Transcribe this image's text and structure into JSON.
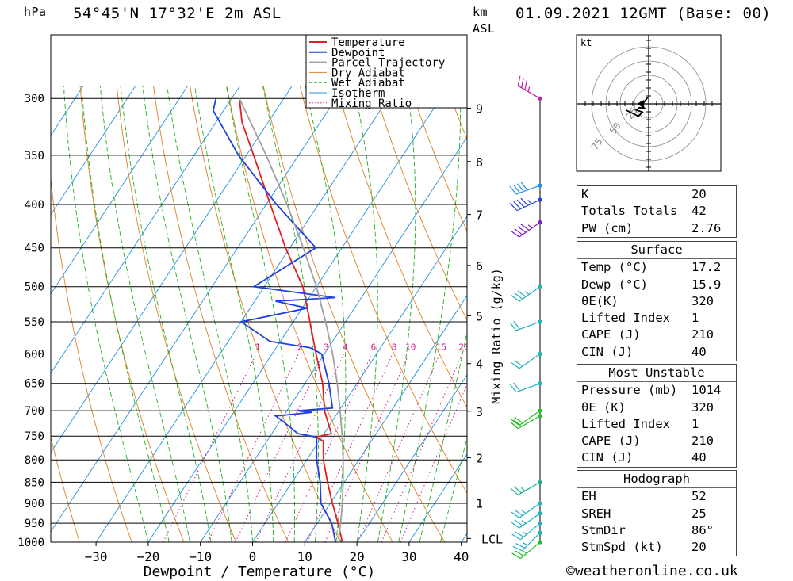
{
  "header": {
    "pressure_unit": "hPa",
    "location": "54°45'N  17°32'E  2m  ASL",
    "height_unit": "km",
    "height_ref": "ASL",
    "datetime": "01.09.2021  12GMT  (Base: 00)"
  },
  "legend": [
    "Temperature",
    "Dewpoint",
    "Parcel Trajectory",
    "Dry Adiabat",
    "Wet Adiabat",
    "Isotherm",
    "Mixing Ratio"
  ],
  "colors": {
    "temperature": "#e02020",
    "dewpoint": "#2040e0",
    "parcel": "#a0a0a0",
    "dry_adiabat": "#e08020",
    "wet_adiabat": "#20b020",
    "isotherm": "#2090e0",
    "mixing_ratio": "#d02090"
  },
  "chart_data": {
    "type": "line",
    "xlabel": "Dewpoint / Temperature (°C)",
    "ylabel_right": "Mixing Ratio (g/kg)",
    "pressure_levels": [
      300,
      350,
      400,
      450,
      500,
      550,
      600,
      650,
      700,
      750,
      800,
      850,
      900,
      950,
      1000
    ],
    "pressure_label_texts": [
      "300",
      "350",
      "400",
      "450",
      "500",
      "550",
      "600",
      "650",
      "700",
      "750",
      "800",
      "850",
      "900",
      "950",
      "1000"
    ],
    "temp_ticks": [
      -30,
      -20,
      -10,
      0,
      10,
      20,
      30,
      40
    ],
    "temp_tick_texts": [
      "−30",
      "−20",
      "−10",
      "0",
      "10",
      "20",
      "30",
      "40"
    ],
    "km_ticks": [
      {
        "label": "9",
        "p": 308
      },
      {
        "label": "8",
        "p": 356
      },
      {
        "label": "7",
        "p": 411
      },
      {
        "label": "6",
        "p": 472
      },
      {
        "label": "5",
        "p": 541
      },
      {
        "label": "4",
        "p": 616
      },
      {
        "label": "3",
        "p": 701
      },
      {
        "label": "2",
        "p": 795
      },
      {
        "label": "1",
        "p": 899
      },
      {
        "label": "LCL",
        "p": 990
      }
    ],
    "mixing_ratio_labels": [
      "1",
      "2",
      "3",
      "4",
      "6",
      "8",
      "10",
      "15",
      "20",
      "25"
    ],
    "mixing_ratio_values": [
      1,
      2,
      3,
      4,
      6,
      8,
      10,
      15,
      20,
      25
    ],
    "series": [
      {
        "name": "Temperature",
        "points": [
          [
            1000,
            17.2
          ],
          [
            950,
            14.0
          ],
          [
            900,
            10.4
          ],
          [
            850,
            6.8
          ],
          [
            800,
            3.2
          ],
          [
            760,
            0.8
          ],
          [
            752,
            -1.2
          ],
          [
            745,
            1.4
          ],
          [
            700,
            -2.8
          ],
          [
            650,
            -6.6
          ],
          [
            600,
            -11.6
          ],
          [
            550,
            -16.8
          ],
          [
            500,
            -22.6
          ],
          [
            450,
            -30.8
          ],
          [
            400,
            -39.2
          ],
          [
            350,
            -48.6
          ],
          [
            320,
            -55.0
          ],
          [
            300,
            -58.5
          ]
        ]
      },
      {
        "name": "Dewpoint",
        "points": [
          [
            1000,
            15.9
          ],
          [
            950,
            12.8
          ],
          [
            900,
            8.2
          ],
          [
            850,
            5.4
          ],
          [
            800,
            1.9
          ],
          [
            752,
            -1.0
          ],
          [
            745,
            -5.0
          ],
          [
            720,
            -9.5
          ],
          [
            710,
            -11.5
          ],
          [
            703,
            -5.0
          ],
          [
            700,
            -8.0
          ],
          [
            695,
            -1.6
          ],
          [
            650,
            -5.4
          ],
          [
            600,
            -10.5
          ],
          [
            590,
            -13.5
          ],
          [
            580,
            -22.0
          ],
          [
            550,
            -30.0
          ],
          [
            530,
            -19.0
          ],
          [
            520,
            -26.0
          ],
          [
            515,
            -15.0
          ],
          [
            500,
            -32.0
          ],
          [
            450,
            -25.0
          ],
          [
            400,
            -38.0
          ],
          [
            350,
            -51.5
          ],
          [
            310,
            -62.0
          ],
          [
            300,
            -63.0
          ]
        ]
      },
      {
        "name": "Parcel Trajectory",
        "points": [
          [
            1000,
            17.2
          ],
          [
            990,
            16.0
          ],
          [
            950,
            14.5
          ],
          [
            900,
            12.3
          ],
          [
            850,
            9.8
          ],
          [
            800,
            7.0
          ],
          [
            750,
            3.8
          ],
          [
            700,
            0.2
          ],
          [
            650,
            -3.8
          ],
          [
            600,
            -8.4
          ],
          [
            550,
            -13.8
          ],
          [
            500,
            -20.0
          ],
          [
            450,
            -27.4
          ],
          [
            400,
            -36.0
          ],
          [
            350,
            -46.2
          ],
          [
            300,
            -58.5
          ]
        ]
      }
    ],
    "hodograph": {
      "unit_label": "kt",
      "ring_labels": [
        "25",
        "50",
        "75"
      ],
      "points": [
        [
          -0.5,
          3.0
        ],
        [
          -2.0,
          1.2
        ],
        [
          -3.5,
          -1.0
        ],
        [
          -2.0,
          -2.2
        ],
        [
          -4.5,
          -1.8
        ],
        [
          -6.0,
          -3.0
        ],
        [
          -3.0,
          -4.0
        ],
        [
          -5.0,
          -6.0
        ],
        [
          -7.0,
          -5.0
        ],
        [
          -11.0,
          -3.0
        ]
      ],
      "storm_motion": [
        -3.0,
        0.0
      ]
    },
    "wind_barbs": [
      {
        "p": 300,
        "dir": 300,
        "speed": 25,
        "color": "#c020a0"
      },
      {
        "p": 380,
        "dir": 250,
        "speed": 40,
        "color": "#2090e0"
      },
      {
        "p": 395,
        "dir": 245,
        "speed": 35,
        "color": "#2040e0"
      },
      {
        "p": 420,
        "dir": 235,
        "speed": 35,
        "color": "#8020c0"
      },
      {
        "p": 500,
        "dir": 235,
        "speed": 25,
        "color": "#20b0c0"
      },
      {
        "p": 550,
        "dir": 250,
        "speed": 20,
        "color": "#20b0c0"
      },
      {
        "p": 600,
        "dir": 235,
        "speed": 20,
        "color": "#20b0c0"
      },
      {
        "p": 650,
        "dir": 250,
        "speed": 20,
        "color": "#20b0c0"
      },
      {
        "p": 700,
        "dir": 235,
        "speed": 20,
        "color": "#20c020"
      },
      {
        "p": 710,
        "dir": 240,
        "speed": 20,
        "color": "#20c020"
      },
      {
        "p": 850,
        "dir": 240,
        "speed": 15,
        "color": "#20b090"
      },
      {
        "p": 900,
        "dir": 235,
        "speed": 15,
        "color": "#20b0c0"
      },
      {
        "p": 925,
        "dir": 235,
        "speed": 15,
        "color": "#20b0c0"
      },
      {
        "p": 950,
        "dir": 230,
        "speed": 15,
        "color": "#20b0c0"
      },
      {
        "p": 975,
        "dir": 225,
        "speed": 15,
        "color": "#20b0c0"
      },
      {
        "p": 1000,
        "dir": 230,
        "speed": 15,
        "color": "#20c020"
      }
    ]
  },
  "indices": {
    "basic": [
      {
        "label": "K",
        "value": "20"
      },
      {
        "label": "Totals Totals",
        "value": "42"
      },
      {
        "label": "PW (cm)",
        "value": "2.76"
      }
    ],
    "surface": {
      "title": "Surface",
      "rows": [
        {
          "label": "Temp (°C)",
          "value": "17.2"
        },
        {
          "label": "Dewp (°C)",
          "value": "15.9"
        },
        {
          "label": "θE(K)",
          "value": "320"
        },
        {
          "label": "Lifted Index",
          "value": "1"
        },
        {
          "label": "CAPE (J)",
          "value": "210"
        },
        {
          "label": "CIN (J)",
          "value": "40"
        }
      ]
    },
    "most_unstable": {
      "title": "Most Unstable",
      "rows": [
        {
          "label": "Pressure (mb)",
          "value": "1014"
        },
        {
          "label": "θE (K)",
          "value": "320"
        },
        {
          "label": "Lifted Index",
          "value": "1"
        },
        {
          "label": "CAPE (J)",
          "value": "210"
        },
        {
          "label": "CIN (J)",
          "value": "40"
        }
      ]
    },
    "hodograph": {
      "title": "Hodograph",
      "rows": [
        {
          "label": "EH",
          "value": "52"
        },
        {
          "label": "SREH",
          "value": "25"
        },
        {
          "label": "StmDir",
          "value": "86°"
        },
        {
          "label": "StmSpd (kt)",
          "value": "20"
        }
      ]
    }
  },
  "footer": {
    "credit": "©weatheronline.co.uk"
  }
}
